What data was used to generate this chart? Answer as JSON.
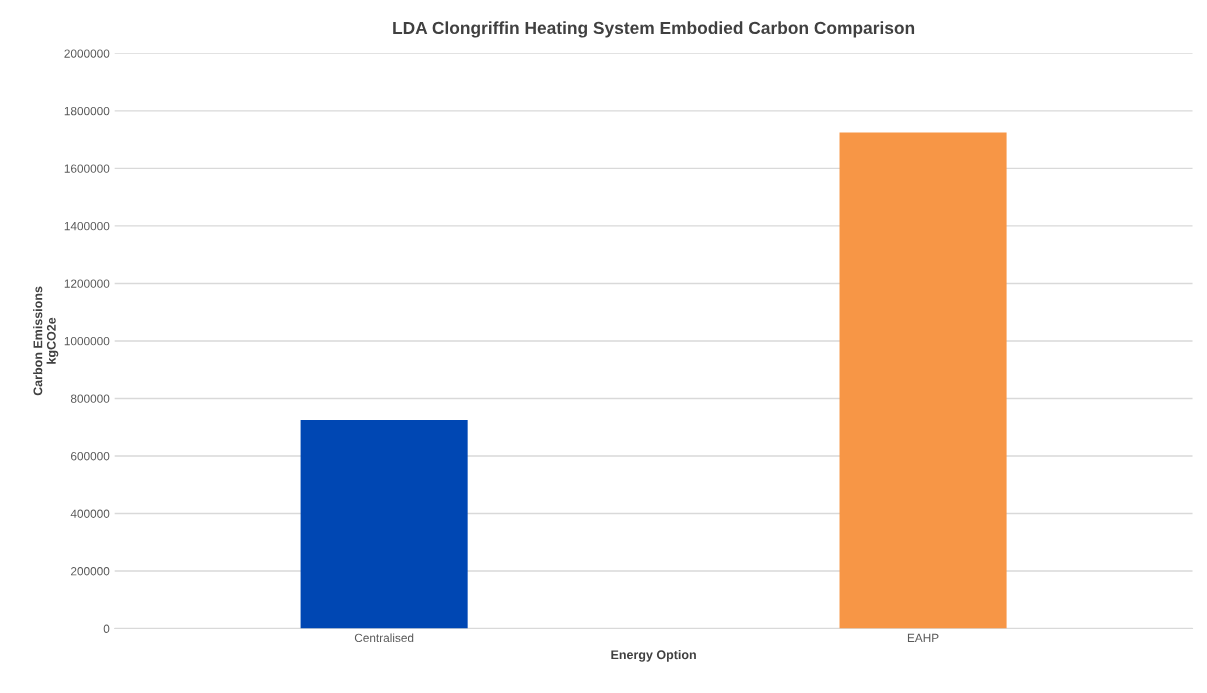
{
  "chart_data": {
    "type": "bar",
    "title": "LDA Clongriffin Heating System Embodied Carbon Comparison",
    "xlabel": "Energy Option",
    "ylabel": "Carbon Emissions\nkgCO2e",
    "categories": [
      "Centralised",
      "EAHP"
    ],
    "values": [
      725000,
      1725000
    ],
    "colors": [
      "#0047b3",
      "#f79646"
    ],
    "ylim": [
      0,
      2000000
    ],
    "yticks": [
      0,
      200000,
      400000,
      600000,
      800000,
      1000000,
      1200000,
      1400000,
      1600000,
      1800000,
      2000000
    ],
    "grid": "y"
  }
}
